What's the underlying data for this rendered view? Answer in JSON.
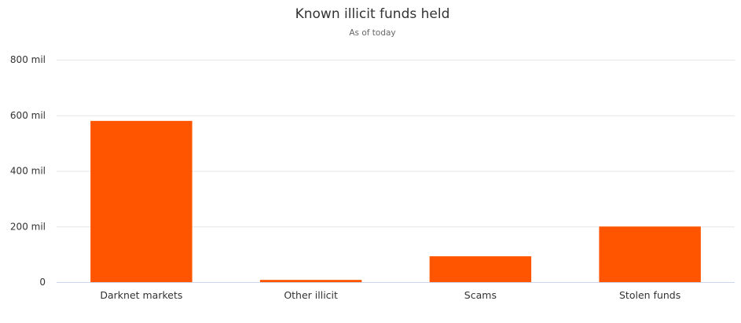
{
  "chart_data": {
    "type": "bar",
    "title": "Known illicit funds held",
    "subtitle": "As of today",
    "xlabel": "",
    "ylabel": "",
    "categories": [
      "Darknet markets",
      "Other illicit",
      "Scams",
      "Stolen funds"
    ],
    "values": [
      580,
      8,
      93,
      200
    ],
    "unit": "mil",
    "ylim": [
      0,
      800
    ],
    "yticks": [
      0,
      200,
      400,
      600,
      800
    ],
    "ytick_labels": [
      "0",
      "200 mil",
      "400 mil",
      "600 mil",
      "800 mil"
    ],
    "grid": true,
    "legend": "none",
    "colors": {
      "bar": "#ff5500",
      "grid": "#e6e6e6",
      "text": "#333333"
    }
  }
}
